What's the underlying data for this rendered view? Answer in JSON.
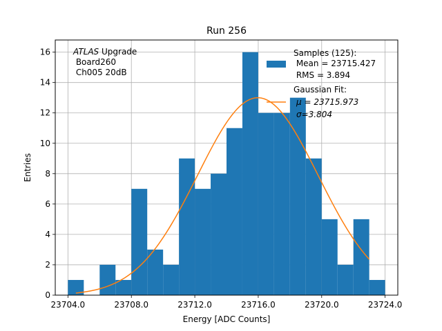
{
  "chart_data": {
    "type": "bar",
    "title": "Run 256",
    "xlabel": "Energy [ADC Counts]",
    "ylabel": "Entries",
    "xlim": [
      23703.2,
      23724.8
    ],
    "ylim": [
      0,
      16.8
    ],
    "x_ticks": [
      23704.0,
      23708.0,
      23712.0,
      23716.0,
      23720.0,
      23724.0
    ],
    "x_tick_labels": [
      "23704.0",
      "23708.0",
      "23712.0",
      "23716.0",
      "23720.0",
      "23724.0"
    ],
    "y_ticks": [
      0,
      2,
      4,
      6,
      8,
      10,
      12,
      14,
      16
    ],
    "y_tick_labels": [
      "0",
      "2",
      "4",
      "6",
      "8",
      "10",
      "12",
      "14",
      "16"
    ],
    "grid": true,
    "legend_position": "top-right",
    "bin_edges": [
      23704,
      23705,
      23706,
      23707,
      23708,
      23709,
      23710,
      23711,
      23712,
      23713,
      23714,
      23715,
      23716,
      23717,
      23718,
      23719,
      23720,
      23721,
      23722,
      23723,
      23724
    ],
    "counts": [
      1,
      0,
      2,
      1,
      7,
      3,
      2,
      9,
      7,
      8,
      11,
      16,
      12,
      12,
      13,
      9,
      5,
      2,
      5,
      1
    ],
    "histogram_color": "#1f77b4",
    "fit": {
      "mean": 23715.973,
      "sigma": 3.804,
      "amplitude": 13.0,
      "x_range": [
        23704.5,
        23723.0
      ],
      "color": "#ff7f0e"
    },
    "annotation": {
      "line1_italic": "ATLAS",
      "line1_rest": " Upgrade",
      "line2": " Board260",
      "line3": " Ch005 20dB"
    },
    "legend": [
      {
        "lines": [
          "Samples (125):",
          " Mean = 23715.427",
          " RMS = 3.894"
        ]
      },
      {
        "lines": [
          "Gaussian Fit:",
          "μ = 23715.973",
          "σ=3.804"
        ]
      }
    ]
  }
}
